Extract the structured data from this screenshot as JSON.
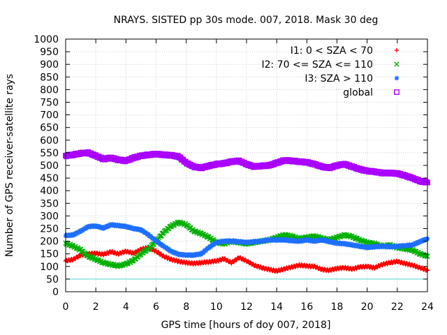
{
  "chart_data": {
    "type": "scatter",
    "title": "NRAYS. SISTED pp 30s mode. 007, 2018. Mask 30 deg",
    "xlabel": "GPS time [hours of doy 007, 2018]",
    "ylabel": "Number of GPS receiver-satellite rays",
    "xlim": [
      0,
      24
    ],
    "ylim": [
      0,
      1000
    ],
    "xticks": [
      0,
      2,
      4,
      6,
      8,
      10,
      12,
      14,
      16,
      18,
      20,
      22,
      24
    ],
    "yticks": [
      0,
      50,
      100,
      150,
      200,
      250,
      300,
      350,
      400,
      450,
      500,
      550,
      600,
      650,
      700,
      750,
      800,
      850,
      900,
      950,
      1000
    ],
    "legend_position": "top-right",
    "reference_line": {
      "y": 50,
      "color": "#55d6d6"
    },
    "series": [
      {
        "name": "I1: 0 < SZA < 70",
        "color": "#ff0000",
        "marker": "+",
        "x": [
          0,
          0.5,
          1,
          1.5,
          2,
          2.5,
          3,
          3.5,
          4,
          4.5,
          5,
          5.5,
          6,
          6.5,
          7,
          7.5,
          8,
          8.5,
          9,
          9.5,
          10,
          10.5,
          11,
          11.5,
          12,
          12.5,
          13,
          13.5,
          14,
          14.5,
          15,
          15.5,
          16,
          16.5,
          17,
          17.5,
          18,
          18.5,
          19,
          19.5,
          20,
          20.5,
          21,
          21.5,
          22,
          22.5,
          23,
          23.5,
          24
        ],
        "y": [
          122,
          128,
          145,
          150,
          152,
          148,
          158,
          150,
          160,
          152,
          168,
          175,
          160,
          140,
          128,
          120,
          115,
          112,
          115,
          118,
          122,
          130,
          115,
          135,
          122,
          105,
          95,
          88,
          82,
          90,
          98,
          105,
          102,
          100,
          88,
          85,
          92,
          95,
          90,
          98,
          100,
          95,
          108,
          115,
          120,
          112,
          105,
          95,
          85
        ]
      },
      {
        "name": "I2: 70 <= SZA <= 110",
        "color": "#00b000",
        "marker": "x",
        "x": [
          0,
          0.5,
          1,
          1.5,
          2,
          2.5,
          3,
          3.5,
          4,
          4.5,
          5,
          5.5,
          6,
          6.5,
          7,
          7.5,
          8,
          8.5,
          9,
          9.5,
          10,
          10.5,
          11,
          11.5,
          12,
          12.5,
          13,
          13.5,
          14,
          14.5,
          15,
          15.5,
          16,
          16.5,
          17,
          17.5,
          18,
          18.5,
          19,
          19.5,
          20,
          20.5,
          21,
          21.5,
          22,
          22.5,
          23,
          23.5,
          24
        ],
        "y": [
          192,
          180,
          165,
          140,
          128,
          115,
          108,
          102,
          110,
          125,
          150,
          170,
          200,
          235,
          260,
          275,
          265,
          240,
          230,
          215,
          195,
          190,
          200,
          195,
          190,
          195,
          200,
          205,
          215,
          225,
          220,
          210,
          215,
          220,
          212,
          205,
          215,
          225,
          218,
          205,
          195,
          190,
          180,
          185,
          175,
          170,
          165,
          150,
          140
        ]
      },
      {
        "name": "I3: SZA > 110",
        "color": "#1f6fff",
        "marker": "*",
        "x": [
          0,
          0.5,
          1,
          1.5,
          2,
          2.5,
          3,
          3.5,
          4,
          4.5,
          5,
          5.5,
          6,
          6.5,
          7,
          7.5,
          8,
          8.5,
          9,
          9.5,
          10,
          10.5,
          11,
          11.5,
          12,
          12.5,
          13,
          13.5,
          14,
          14.5,
          15,
          15.5,
          16,
          16.5,
          17,
          17.5,
          18,
          18.5,
          19,
          19.5,
          20,
          20.5,
          21,
          21.5,
          22,
          22.5,
          23,
          23.5,
          24
        ],
        "y": [
          222,
          225,
          240,
          258,
          260,
          252,
          265,
          262,
          258,
          250,
          245,
          225,
          200,
          180,
          160,
          148,
          145,
          145,
          150,
          175,
          195,
          200,
          200,
          198,
          195,
          198,
          200,
          205,
          205,
          205,
          202,
          200,
          205,
          200,
          205,
          198,
          192,
          190,
          185,
          180,
          175,
          178,
          180,
          178,
          180,
          182,
          185,
          198,
          210
        ]
      },
      {
        "name": "global",
        "color": "#aa00ff",
        "marker": "square",
        "x": [
          0,
          0.5,
          1,
          1.5,
          2,
          2.5,
          3,
          3.5,
          4,
          4.5,
          5,
          5.5,
          6,
          6.5,
          7,
          7.5,
          8,
          8.5,
          9,
          9.5,
          10,
          10.5,
          11,
          11.5,
          12,
          12.5,
          13,
          13.5,
          14,
          14.5,
          15,
          15.5,
          16,
          16.5,
          17,
          17.5,
          18,
          18.5,
          19,
          19.5,
          20,
          20.5,
          21,
          21.5,
          22,
          22.5,
          23,
          23.5,
          24
        ],
        "y": [
          538,
          542,
          548,
          550,
          538,
          525,
          530,
          522,
          518,
          530,
          538,
          542,
          545,
          542,
          540,
          535,
          510,
          495,
          490,
          498,
          505,
          508,
          515,
          518,
          505,
          495,
          498,
          500,
          510,
          520,
          518,
          515,
          512,
          505,
          495,
          490,
          500,
          505,
          495,
          485,
          478,
          475,
          470,
          470,
          468,
          460,
          450,
          438,
          432
        ]
      }
    ]
  }
}
